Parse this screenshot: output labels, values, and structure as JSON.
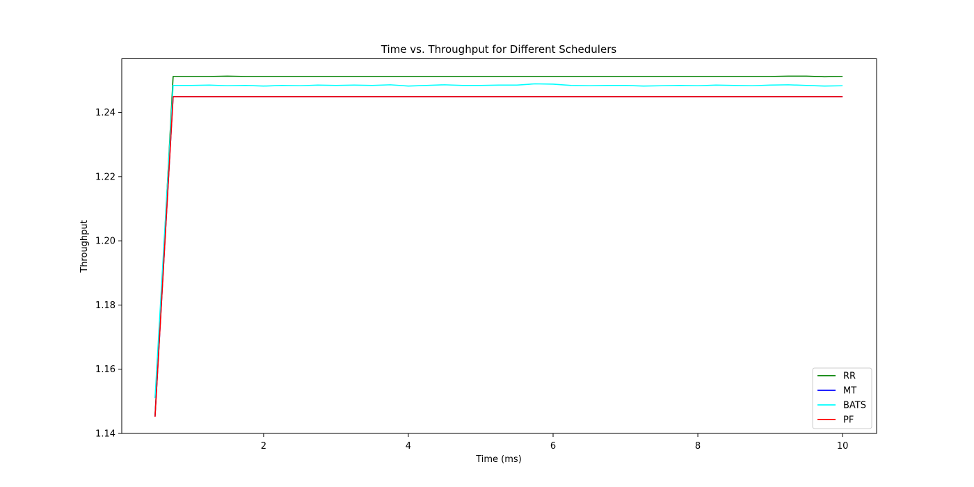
{
  "chart_data": {
    "type": "line",
    "title": "Time vs. Throughput for Different Schedulers",
    "xlabel": "Time (ms)",
    "ylabel": "Throughput",
    "xlim": [
      0.04,
      10.47
    ],
    "ylim": [
      1.14,
      1.2567
    ],
    "xticks": [
      2,
      4,
      6,
      8,
      10
    ],
    "yticks": [
      1.14,
      1.16,
      1.18,
      1.2,
      1.22,
      1.24
    ],
    "xtick_labels": [
      "2",
      "4",
      "6",
      "8",
      "10"
    ],
    "ytick_labels": [
      "1.14",
      "1.16",
      "1.18",
      "1.20",
      "1.22",
      "1.24"
    ],
    "grid": false,
    "legend_position": "bottom-right",
    "colors": {
      "RR": "#008000",
      "MT": "#0000ff",
      "BATS": "#00ffff",
      "PF": "#ff0000"
    },
    "x": [
      0.5,
      0.75,
      1.0,
      1.25,
      1.5,
      1.75,
      2.0,
      2.25,
      2.5,
      2.75,
      3.0,
      3.25,
      3.5,
      3.75,
      4.0,
      4.25,
      4.5,
      4.75,
      5.0,
      5.25,
      5.5,
      5.75,
      6.0,
      6.25,
      6.5,
      6.75,
      7.0,
      7.25,
      7.5,
      7.75,
      8.0,
      8.25,
      8.5,
      8.75,
      9.0,
      9.25,
      9.5,
      9.75,
      10.0
    ],
    "series": [
      {
        "name": "RR",
        "values": [
          1.1455,
          1.2512,
          1.2512,
          1.2512,
          1.2513,
          1.2512,
          1.2512,
          1.2512,
          1.2512,
          1.2512,
          1.2512,
          1.2512,
          1.2512,
          1.2512,
          1.2512,
          1.2512,
          1.2512,
          1.2512,
          1.2512,
          1.2512,
          1.2512,
          1.2512,
          1.2512,
          1.2512,
          1.2512,
          1.2512,
          1.2512,
          1.2512,
          1.2512,
          1.2512,
          1.2512,
          1.2512,
          1.2512,
          1.2512,
          1.2512,
          1.2513,
          1.2513,
          1.2511,
          1.2512
        ]
      },
      {
        "name": "MT",
        "values": [
          1.1453,
          1.2449,
          1.2449,
          1.2449,
          1.2449,
          1.2449,
          1.2449,
          1.2449,
          1.2449,
          1.2449,
          1.2449,
          1.2449,
          1.2449,
          1.2449,
          1.2449,
          1.2449,
          1.2449,
          1.2449,
          1.2449,
          1.2449,
          1.2449,
          1.2449,
          1.2449,
          1.2449,
          1.2449,
          1.2449,
          1.2449,
          1.2449,
          1.2449,
          1.2449,
          1.2449,
          1.2449,
          1.2449,
          1.2449,
          1.2449,
          1.2449,
          1.2449,
          1.2449,
          1.2449
        ]
      },
      {
        "name": "BATS",
        "values": [
          1.151,
          1.2484,
          1.2484,
          1.2485,
          1.2483,
          1.2484,
          1.2482,
          1.2484,
          1.2483,
          1.2485,
          1.2484,
          1.2485,
          1.2484,
          1.2486,
          1.2482,
          1.2484,
          1.2486,
          1.2484,
          1.2484,
          1.2485,
          1.2485,
          1.2489,
          1.2488,
          1.2484,
          1.2483,
          1.2484,
          1.2484,
          1.2482,
          1.2483,
          1.2484,
          1.2483,
          1.2485,
          1.2484,
          1.2483,
          1.2485,
          1.2486,
          1.2484,
          1.2482,
          1.2483
        ]
      },
      {
        "name": "PF",
        "values": [
          1.1452,
          1.2449,
          1.2449,
          1.2449,
          1.2449,
          1.2449,
          1.2449,
          1.2449,
          1.2449,
          1.2449,
          1.2449,
          1.2449,
          1.2449,
          1.2449,
          1.2449,
          1.2449,
          1.2449,
          1.2449,
          1.2449,
          1.2449,
          1.2449,
          1.2449,
          1.2449,
          1.2449,
          1.2449,
          1.2449,
          1.2449,
          1.2449,
          1.2449,
          1.2449,
          1.2449,
          1.2449,
          1.2449,
          1.2449,
          1.2449,
          1.2449,
          1.2449,
          1.2449,
          1.2449
        ]
      }
    ]
  }
}
